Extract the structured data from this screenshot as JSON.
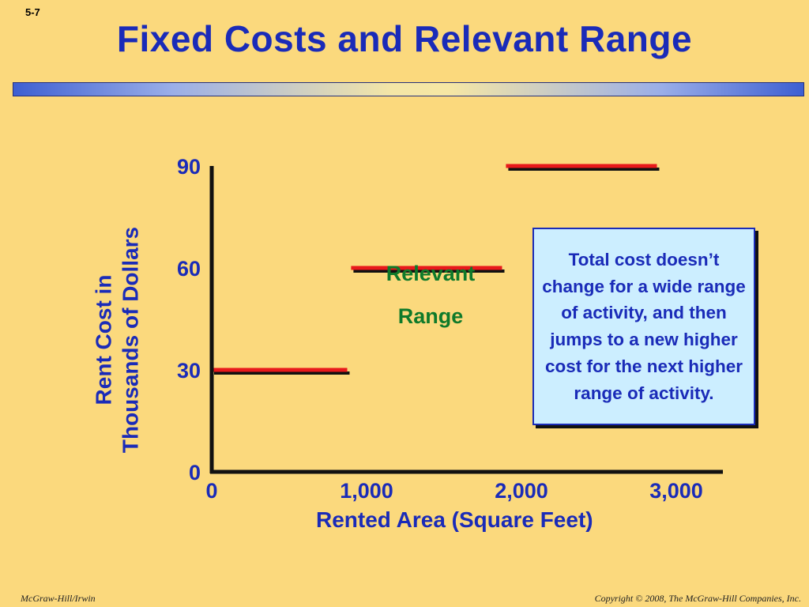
{
  "slide": {
    "number": "5-7",
    "title": "Fixed Costs and Relevant Range"
  },
  "footer": {
    "left": "McGraw-Hill/Irwin",
    "right": "Copyright © 2008, The McGraw-Hill Companies, Inc."
  },
  "colors": {
    "axis_text": "#1a2bb8",
    "step_line": "#e8191b",
    "step_shadow": "#111111",
    "range_label": "#0f7a2a",
    "callout_bg": "#cceeff",
    "background": "#fbd97d"
  },
  "annotation": {
    "relevant_range_line1": "Relevant",
    "relevant_range_line2": "Range",
    "callout_text": "Total cost doesn’t change for a wide range of activity, and then jumps to a new higher cost for the next higher range of activity."
  },
  "chart_data": {
    "type": "line",
    "title": "Fixed Costs and Relevant Range",
    "xlabel": "Rented Area (Square Feet)",
    "ylabel_line1": "Rent Cost in",
    "ylabel_line2": "Thousands of Dollars",
    "xlim": [
      0,
      3300
    ],
    "ylim": [
      0,
      100
    ],
    "x_ticks": [
      {
        "value": 0,
        "label": "0"
      },
      {
        "value": 1000,
        "label": "1,000"
      },
      {
        "value": 2000,
        "label": "2,000"
      },
      {
        "value": 3000,
        "label": "3,000"
      }
    ],
    "y_ticks": [
      {
        "value": 0,
        "label": "0"
      },
      {
        "value": 30,
        "label": "30"
      },
      {
        "value": 60,
        "label": "60"
      },
      {
        "value": 90,
        "label": "90"
      }
    ],
    "segments": [
      {
        "x_start": 0,
        "x_end": 875,
        "y": 30
      },
      {
        "x_start": 900,
        "x_end": 1875,
        "y": 60
      },
      {
        "x_start": 1900,
        "x_end": 2875,
        "y": 90
      }
    ],
    "grid": false,
    "legend": "none"
  }
}
